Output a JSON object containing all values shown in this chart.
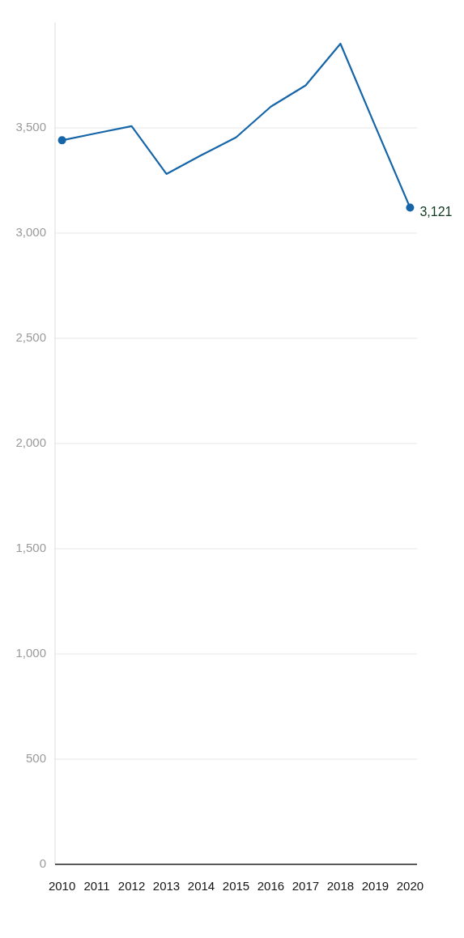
{
  "chart_data": {
    "type": "line",
    "x": [
      2010,
      2011,
      2012,
      2013,
      2014,
      2015,
      2016,
      2017,
      2018,
      2019,
      2020
    ],
    "series": [
      {
        "color": "#1565a8",
        "values": [
          3441,
          3475,
          3508,
          3281,
          3370,
          3455,
          3601,
          3702,
          3900,
          3508,
          3121
        ],
        "marker": "none"
      },
      {
        "type": "scatter",
        "color": "#1565a8",
        "x": [
          2010,
          2020
        ],
        "values": [
          3441,
          3121
        ],
        "value_labels": [
          null,
          "3,121"
        ],
        "marker": "circle"
      }
    ],
    "xlim": [
      2009.8,
      2020.2
    ],
    "xticks": [
      2010,
      2011,
      2012,
      2013,
      2014,
      2015,
      2016,
      2017,
      2018,
      2019,
      2020
    ],
    "ylim": [
      0,
      4000
    ],
    "yticks": [
      0,
      500,
      {
        "value": 1000,
        "label": "1,000"
      },
      {
        "value": 1500,
        "label": "1,500"
      },
      {
        "value": 2000,
        "label": "2,000"
      },
      {
        "value": 2500,
        "label": "2,500"
      },
      {
        "value": 3000,
        "label": "3,000"
      },
      {
        "value": 3500,
        "label": "3,500"
      }
    ],
    "grid": "y",
    "line_style": "solid"
  }
}
